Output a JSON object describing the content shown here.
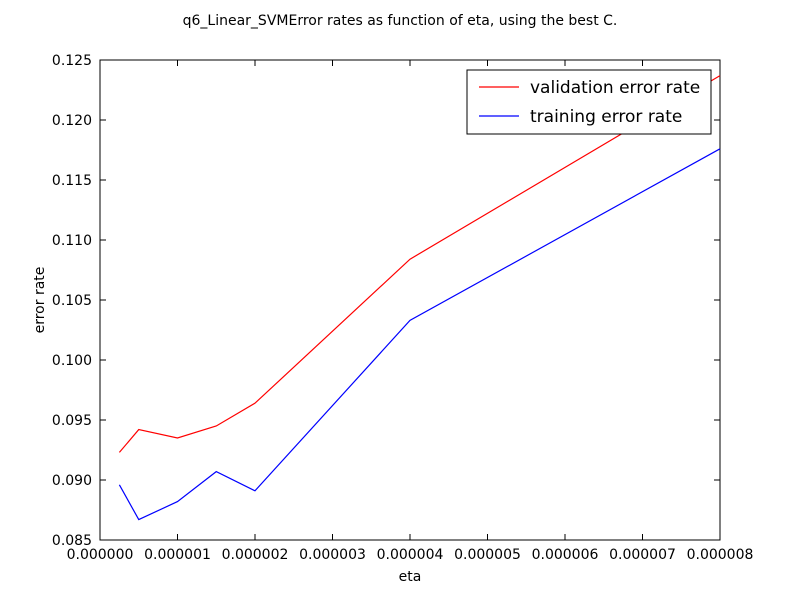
{
  "chart_data": {
    "type": "line",
    "title": "q6_Linear_SVMError rates as function of eta, using the best C.",
    "xlabel": "eta",
    "ylabel": "error rate",
    "xlim": [
      0.0,
      8e-06
    ],
    "ylim": [
      0.085,
      0.125
    ],
    "xticks": [
      0.0,
      1e-06,
      2e-06,
      3e-06,
      4e-06,
      5e-06,
      6e-06,
      7e-06,
      8e-06
    ],
    "xtick_labels": [
      "0.000000",
      "0.000001",
      "0.000002",
      "0.000003",
      "0.000004",
      "0.000005",
      "0.000006",
      "0.000007",
      "0.000008"
    ],
    "yticks": [
      0.085,
      0.09,
      0.095,
      0.1,
      0.105,
      0.11,
      0.115,
      0.12,
      0.125
    ],
    "ytick_labels": [
      "0.085",
      "0.090",
      "0.095",
      "0.100",
      "0.105",
      "0.110",
      "0.115",
      "0.120",
      "0.125"
    ],
    "grid": false,
    "legend_position": "top-right",
    "x": [
      2.5e-07,
      5e-07,
      1e-06,
      1.5e-06,
      2e-06,
      4e-06,
      8e-06
    ],
    "series": [
      {
        "name": "validation error rate",
        "color": "#ff0000",
        "values": [
          0.0923,
          0.0942,
          0.0935,
          0.0945,
          0.0964,
          0.1084,
          0.1237
        ]
      },
      {
        "name": "training error rate",
        "color": "#0000ff",
        "values": [
          0.0896,
          0.0867,
          0.0882,
          0.0907,
          0.0891,
          0.1033,
          0.1176
        ]
      }
    ]
  }
}
